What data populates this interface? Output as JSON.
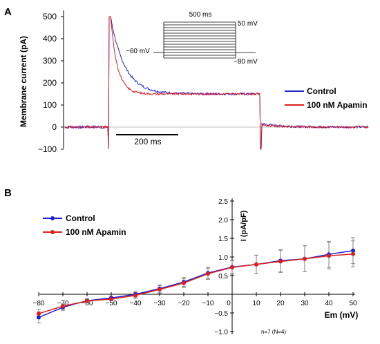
{
  "colors": {
    "control": "#1f1fcc",
    "apamin": "#dd1f1f",
    "axis": "#000000",
    "zero_line": "#c0c0c0"
  },
  "chart_data": [
    {
      "panel": "A",
      "type": "line",
      "ylabel": "Membrane current (pA)",
      "ylim": [
        -100,
        500
      ],
      "yticks": [
        "500",
        "400",
        "300",
        "200",
        "100",
        "0",
        "−100"
      ],
      "ytick_values": [
        500,
        400,
        300,
        200,
        100,
        0,
        -100
      ],
      "scale_bar": {
        "label": "200 ms",
        "value_ms": 200
      },
      "legend": {
        "position": "right",
        "entries": [
          "Control",
          "100 nM Apamin"
        ]
      },
      "inset": {
        "duration_label": "500 ms",
        "top_label": "50 mV",
        "holding_label": "−60 mV",
        "bottom_label": "−80 mV",
        "steps_mV": [
          50,
          40,
          30,
          20,
          10,
          0,
          -10,
          -20,
          -30,
          -40,
          -50,
          -60,
          -70,
          -80
        ]
      },
      "series": [
        {
          "name": "Control",
          "baseline_pA": 0,
          "peak_pA": 500,
          "steady_pA": 150,
          "tail_pA": 15,
          "decay_ms": 45
        },
        {
          "name": "100 nM Apamin",
          "baseline_pA": 0,
          "peak_pA": 500,
          "steady_pA": 150,
          "tail_pA": 10,
          "decay_ms": 22
        }
      ]
    },
    {
      "panel": "B",
      "type": "line",
      "xlabel": "Em (mV)",
      "ylabel": "I (pA/pF)",
      "xlim": [
        -80,
        50
      ],
      "ylim": [
        -1.0,
        2.5
      ],
      "xticks": [
        "−80",
        "−70",
        "−60",
        "−50",
        "−40",
        "−30",
        "−20",
        "−10",
        "0",
        "10",
        "20",
        "30",
        "40",
        "50"
      ],
      "xtick_values": [
        -80,
        -70,
        -60,
        -50,
        -40,
        -30,
        -20,
        -10,
        0,
        10,
        20,
        30,
        40,
        50
      ],
      "yticks": [
        "2.5",
        "2.0",
        "1.5",
        "1.0",
        "0.5",
        "−0.5",
        "−1.0"
      ],
      "ytick_values": [
        2.5,
        2.0,
        1.5,
        1.0,
        0.5,
        -0.5,
        -1.0
      ],
      "annotation": "n=7 (N=4)",
      "legend": {
        "position": "top-left",
        "entries": [
          "Control",
          "100 nM Apamin"
        ]
      },
      "x": [
        -80,
        -70,
        -60,
        -50,
        -40,
        -30,
        -20,
        -10,
        0,
        10,
        20,
        30,
        40,
        50
      ],
      "series": [
        {
          "name": "Control",
          "values": [
            -0.62,
            -0.35,
            -0.17,
            -0.1,
            0.0,
            0.15,
            0.33,
            0.57,
            0.73,
            0.8,
            0.9,
            0.95,
            1.07,
            1.17
          ],
          "errors": [
            0.15,
            0.08,
            0.05,
            0.05,
            0.08,
            0.1,
            0.12,
            0.15,
            0.18,
            0.25,
            0.3,
            0.35,
            0.35,
            0.35
          ]
        },
        {
          "name": "100 nM Apamin",
          "values": [
            -0.52,
            -0.32,
            -0.18,
            -0.13,
            -0.03,
            0.13,
            0.3,
            0.55,
            0.72,
            0.8,
            0.88,
            0.95,
            1.03,
            1.08
          ],
          "errors": [
            0.12,
            0.08,
            0.05,
            0.05,
            0.08,
            0.1,
            0.12,
            0.15,
            0.18,
            0.25,
            0.3,
            0.35,
            0.35,
            0.35
          ]
        }
      ]
    }
  ],
  "panel_labels": {
    "a": "A",
    "b": "B"
  }
}
